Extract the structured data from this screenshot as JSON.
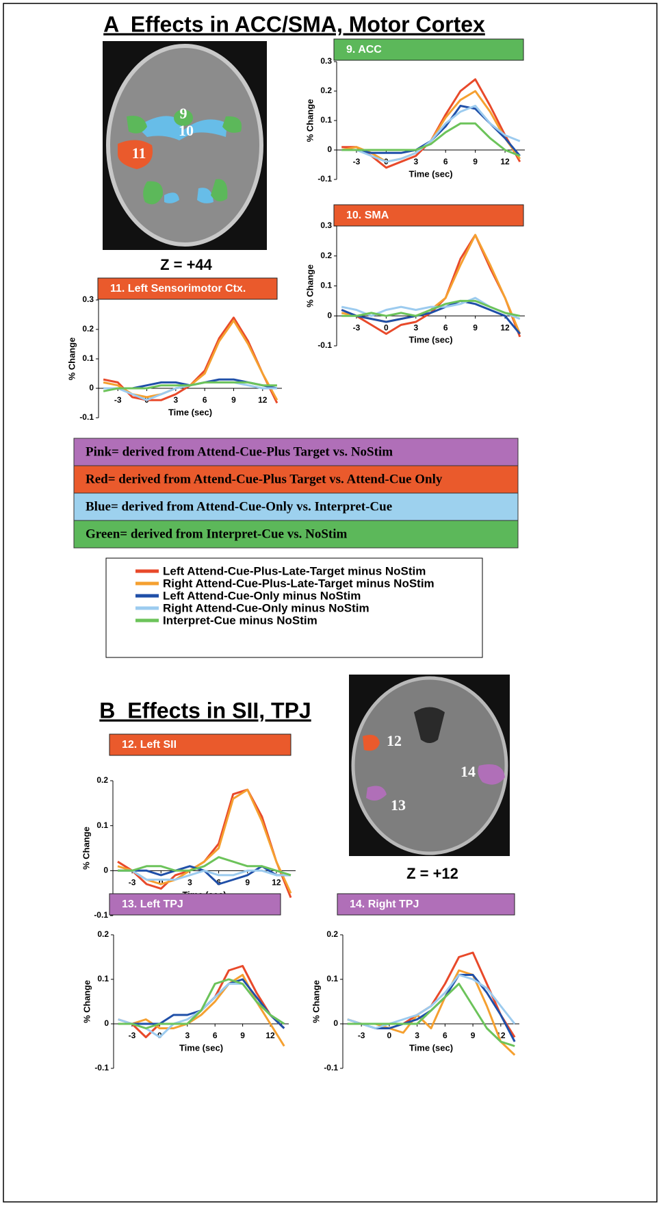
{
  "sections": [
    {
      "title": "A  Effects in ACC/SMA, Motor Cortex"
    },
    {
      "title": "B  Effects in SII, TPJ"
    }
  ],
  "brain_images": [
    {
      "regions": [
        "9",
        "10",
        "11"
      ],
      "caption": "Z = +44"
    },
    {
      "regions": [
        "12",
        "13",
        "14"
      ],
      "caption": "Z = +12"
    }
  ],
  "color_key": [
    {
      "text": "Pink= derived from Attend-Cue-Plus Target vs. NoStim",
      "color": "#b06fb8"
    },
    {
      "text": "Red= derived from Attend-Cue-Plus Target vs. Attend-Cue Only",
      "color": "#ea5a2c"
    },
    {
      "text": "Blue= derived from Attend-Cue-Only vs. Interpret-Cue",
      "color": "#9dd1ee"
    },
    {
      "text": "Green= derived from Interpret-Cue vs. NoStim",
      "color": "#5cb85a"
    }
  ],
  "legend": [
    {
      "name": "Left Attend-Cue-Plus-Late-Target minus NoStim",
      "color": "#e8492a"
    },
    {
      "name": "Right Attend-Cue-Plus-Late-Target minus NoStim",
      "color": "#f5a030"
    },
    {
      "name": "Left Attend-Cue-Only minus NoStim",
      "color": "#1f4fa8"
    },
    {
      "name": "Right Attend-Cue-Only minus NoStim",
      "color": "#9ccbef"
    },
    {
      "name": "Interpret-Cue minus NoStim",
      "color": "#6cc35a"
    }
  ],
  "chart_data": [
    {
      "type": "line",
      "title": "9. ACC",
      "title_color": "#5cb85a",
      "xlabel": "Time (sec)",
      "ylabel": "% Change",
      "x": [
        -4.5,
        -3,
        -1.5,
        0,
        1.5,
        3,
        4.5,
        6,
        7.5,
        9,
        10.5,
        12,
        13.5
      ],
      "xlim": [
        -5,
        14
      ],
      "ylim": [
        -0.1,
        0.3
      ],
      "xticks": [
        -3,
        0,
        3,
        6,
        9,
        12
      ],
      "yticks": [
        -0.1,
        0,
        0.1,
        0.2,
        0.3
      ],
      "series": [
        {
          "values": [
            0.01,
            0.01,
            -0.02,
            -0.06,
            -0.04,
            -0.02,
            0.03,
            0.12,
            0.2,
            0.24,
            0.15,
            0.05,
            -0.04
          ]
        },
        {
          "values": [
            0,
            0.01,
            -0.01,
            -0.04,
            -0.03,
            -0.01,
            0.03,
            0.11,
            0.17,
            0.2,
            0.13,
            0.04,
            -0.03
          ]
        },
        {
          "values": [
            0,
            0,
            -0.01,
            -0.01,
            -0.01,
            0,
            0.03,
            0.08,
            0.15,
            0.14,
            0.09,
            0.04,
            -0.02
          ]
        },
        {
          "values": [
            0,
            0,
            -0.02,
            -0.04,
            -0.03,
            -0.01,
            0.03,
            0.09,
            0.13,
            0.15,
            0.09,
            0.05,
            0.03
          ]
        },
        {
          "values": [
            0,
            0,
            0,
            0,
            0,
            0,
            0.02,
            0.06,
            0.09,
            0.09,
            0.04,
            0,
            -0.02
          ]
        }
      ]
    },
    {
      "type": "line",
      "title": "10. SMA",
      "title_color": "#ea5a2c",
      "xlabel": "Time (sec)",
      "ylabel": "% Change",
      "x": [
        -4.5,
        -3,
        -1.5,
        0,
        1.5,
        3,
        4.5,
        6,
        7.5,
        9,
        10.5,
        12,
        13.5
      ],
      "xlim": [
        -5,
        14
      ],
      "ylim": [
        -0.1,
        0.3
      ],
      "xticks": [
        -3,
        0,
        3,
        6,
        9,
        12
      ],
      "yticks": [
        -0.1,
        0,
        0.1,
        0.2,
        0.3
      ],
      "series": [
        {
          "values": [
            0.02,
            0,
            -0.03,
            -0.06,
            -0.03,
            -0.02,
            0.01,
            0.06,
            0.19,
            0.27,
            0.16,
            0.06,
            -0.07
          ]
        },
        {
          "values": [
            0.01,
            0,
            -0.01,
            -0.02,
            -0.01,
            0,
            0.02,
            0.06,
            0.17,
            0.27,
            0.17,
            0.06,
            -0.06
          ]
        },
        {
          "values": [
            0.02,
            0,
            -0.01,
            -0.02,
            -0.01,
            0,
            0.01,
            0.03,
            0.05,
            0.04,
            0.02,
            0,
            -0.06
          ]
        },
        {
          "values": [
            0.03,
            0.02,
            0,
            0.02,
            0.03,
            0.02,
            0.03,
            0.03,
            0.04,
            0.06,
            0.03,
            0.01,
            -0.01
          ]
        },
        {
          "values": [
            0,
            0,
            0.01,
            0,
            0.01,
            0,
            0.02,
            0.04,
            0.05,
            0.05,
            0.03,
            0.01,
            0
          ]
        }
      ]
    },
    {
      "type": "line",
      "title": "11. Left Sensorimotor Ctx.",
      "title_color": "#ea5a2c",
      "xlabel": "Time (sec)",
      "ylabel": "% Change",
      "x": [
        -4.5,
        -3,
        -1.5,
        0,
        1.5,
        3,
        4.5,
        6,
        7.5,
        9,
        10.5,
        12,
        13.5
      ],
      "xlim": [
        -5,
        14
      ],
      "ylim": [
        -0.1,
        0.3
      ],
      "xticks": [
        -3,
        0,
        3,
        6,
        9,
        12
      ],
      "yticks": [
        -0.1,
        0,
        0.1,
        0.2,
        0.3
      ],
      "series": [
        {
          "values": [
            0.03,
            0.02,
            -0.03,
            -0.04,
            -0.04,
            -0.02,
            0.01,
            0.06,
            0.17,
            0.24,
            0.16,
            0.05,
            -0.05
          ]
        },
        {
          "values": [
            0.02,
            0.01,
            -0.02,
            -0.03,
            -0.02,
            0,
            0.01,
            0.05,
            0.16,
            0.23,
            0.15,
            0.05,
            -0.04
          ]
        },
        {
          "values": [
            0,
            0,
            0,
            0.01,
            0.02,
            0.02,
            0.01,
            0.02,
            0.03,
            0.03,
            0.02,
            0.01,
            0
          ]
        },
        {
          "values": [
            0,
            0,
            -0.02,
            -0.04,
            -0.02,
            0,
            0.01,
            0.02,
            0.02,
            0.02,
            0.01,
            0,
            0
          ]
        },
        {
          "values": [
            -0.01,
            0,
            0,
            0,
            0.01,
            0.01,
            0.01,
            0.02,
            0.02,
            0.02,
            0.02,
            0.01,
            0.01
          ]
        }
      ]
    },
    {
      "type": "line",
      "title": "12. Left SII",
      "title_color": "#ea5a2c",
      "xlabel": "Time (sec)",
      "ylabel": "% Change",
      "x": [
        -4.5,
        -3,
        -1.5,
        0,
        1.5,
        3,
        4.5,
        6,
        7.5,
        9,
        10.5,
        12,
        13.5
      ],
      "xlim": [
        -5,
        14
      ],
      "ylim": [
        -0.1,
        0.2
      ],
      "xticks": [
        -3,
        0,
        3,
        6,
        9,
        12
      ],
      "yticks": [
        -0.1,
        0,
        0.1,
        0.2
      ],
      "series": [
        {
          "values": [
            0.02,
            0,
            -0.03,
            -0.04,
            -0.01,
            0,
            0.02,
            0.06,
            0.17,
            0.18,
            0.12,
            0.02,
            -0.06
          ]
        },
        {
          "values": [
            0.01,
            0,
            -0.02,
            -0.03,
            -0.02,
            0,
            0.02,
            0.05,
            0.16,
            0.18,
            0.11,
            0.02,
            -0.05
          ]
        },
        {
          "values": [
            0,
            0,
            0,
            -0.01,
            0,
            0.01,
            0,
            -0.03,
            -0.02,
            -0.01,
            0.01,
            -0.01,
            -0.01
          ]
        },
        {
          "values": [
            0,
            0,
            -0.02,
            -0.02,
            -0.02,
            -0.01,
            0,
            -0.01,
            -0.01,
            0,
            0,
            -0.01,
            -0.01
          ]
        },
        {
          "values": [
            0,
            0,
            0.01,
            0.01,
            0,
            0,
            0.01,
            0.03,
            0.02,
            0.01,
            0.01,
            0,
            -0.01
          ]
        }
      ]
    },
    {
      "type": "line",
      "title": "13. Left TPJ",
      "title_color": "#b06fb8",
      "xlabel": "Time (sec)",
      "ylabel": "% Change",
      "x": [
        -4.5,
        -3,
        -1.5,
        0,
        1.5,
        3,
        4.5,
        6,
        7.5,
        9,
        10.5,
        12,
        13.5
      ],
      "xlim": [
        -5,
        14
      ],
      "ylim": [
        -0.1,
        0.2
      ],
      "xticks": [
        -3,
        0,
        3,
        6,
        9,
        12
      ],
      "yticks": [
        -0.1,
        0,
        0.1,
        0.2
      ],
      "series": [
        {
          "values": [
            0.01,
            0,
            -0.03,
            0,
            0,
            0,
            0.03,
            0.06,
            0.12,
            0.13,
            0.07,
            0.02,
            -0.01
          ]
        },
        {
          "values": [
            0,
            0,
            0.01,
            -0.01,
            -0.01,
            0,
            0.02,
            0.05,
            0.09,
            0.11,
            0.05,
            0,
            -0.05
          ]
        },
        {
          "values": [
            0,
            0,
            0,
            0,
            0.02,
            0.02,
            0.03,
            0.06,
            0.09,
            0.1,
            0.06,
            0.02,
            -0.01
          ]
        },
        {
          "values": [
            0.01,
            0,
            -0.01,
            -0.03,
            0,
            0.01,
            0.03,
            0.06,
            0.09,
            0.09,
            0.05,
            0.02,
            0
          ]
        },
        {
          "values": [
            0,
            0,
            -0.01,
            0,
            0,
            0,
            0.03,
            0.09,
            0.1,
            0.09,
            0.05,
            0.02,
            0
          ]
        }
      ]
    },
    {
      "type": "line",
      "title": "14. Right TPJ",
      "title_color": "#b06fb8",
      "xlabel": "Time (sec)",
      "ylabel": "% Change",
      "x": [
        -4.5,
        -3,
        -1.5,
        0,
        1.5,
        3,
        4.5,
        6,
        7.5,
        9,
        10.5,
        12,
        13.5
      ],
      "xlim": [
        -5,
        14
      ],
      "ylim": [
        -0.1,
        0.2
      ],
      "xticks": [
        -3,
        0,
        3,
        6,
        9,
        12
      ],
      "yticks": [
        -0.1,
        0,
        0.1,
        0.2
      ],
      "series": [
        {
          "values": [
            0.01,
            0,
            0,
            0,
            0,
            0.02,
            0.04,
            0.09,
            0.15,
            0.16,
            0.09,
            0.02,
            -0.03
          ]
        },
        {
          "values": [
            0.01,
            0,
            0,
            -0.01,
            -0.02,
            0.02,
            -0.01,
            0.06,
            0.12,
            0.11,
            0.04,
            -0.04,
            -0.07
          ]
        },
        {
          "values": [
            0,
            0,
            -0.01,
            -0.01,
            0,
            0.01,
            0.03,
            0.06,
            0.11,
            0.11,
            0.07,
            0.02,
            -0.04
          ]
        },
        {
          "values": [
            0.01,
            0,
            -0.01,
            0,
            0.01,
            0.02,
            0.04,
            0.07,
            0.11,
            0.1,
            0.08,
            0.04,
            0
          ]
        },
        {
          "values": [
            0,
            0,
            0,
            0,
            0,
            0,
            0.03,
            0.06,
            0.09,
            0.04,
            -0.01,
            -0.04,
            -0.05
          ]
        }
      ]
    }
  ]
}
